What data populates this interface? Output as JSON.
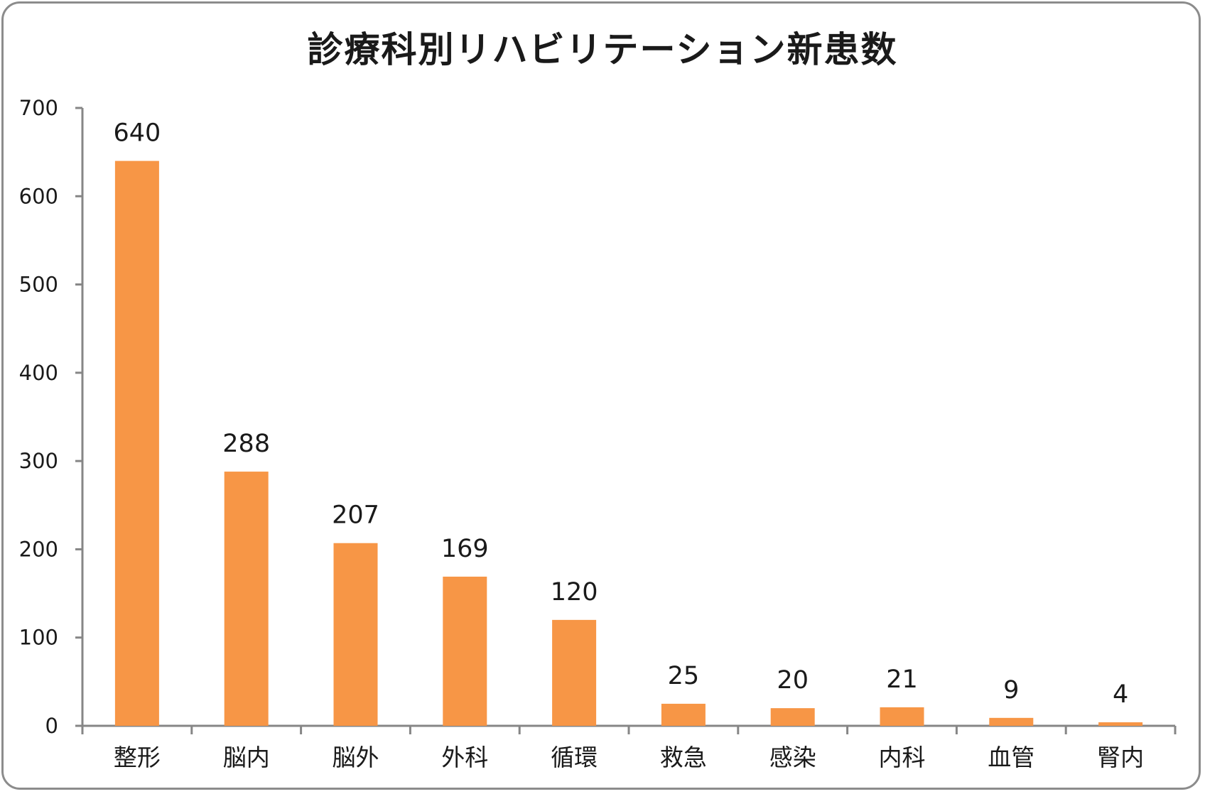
{
  "chart_data": {
    "type": "bar",
    "title": "診療科別リハビリテーション新患数",
    "xlabel": "",
    "ylabel": "",
    "ylim": [
      0,
      700
    ],
    "yticks": [
      0,
      100,
      200,
      300,
      400,
      500,
      600,
      700
    ],
    "categories": [
      "整形",
      "脳内",
      "脳外",
      "外科",
      "循環",
      "救急",
      "感染",
      "内科",
      "血管",
      "腎内"
    ],
    "values": [
      640,
      288,
      207,
      169,
      120,
      25,
      20,
      21,
      9,
      4
    ],
    "data_labels": [
      "640",
      "288",
      "207",
      "169",
      "120",
      "25",
      "20",
      "21",
      "9",
      "4"
    ],
    "bar_color": "#f79646",
    "grid": false,
    "legend": "none"
  }
}
